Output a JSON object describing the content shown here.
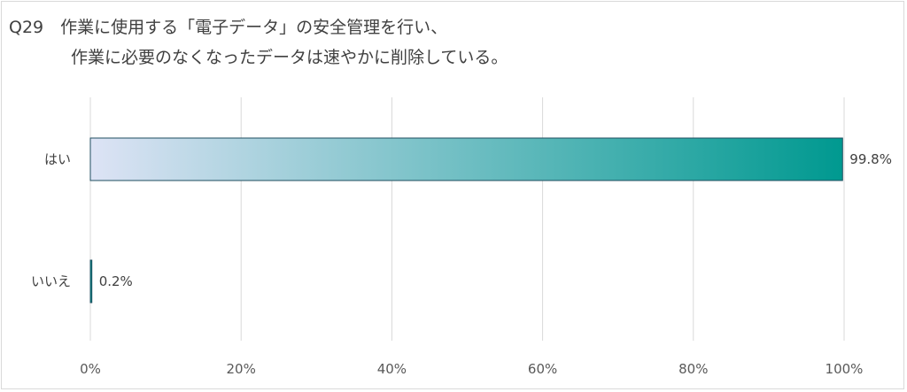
{
  "chart_data": {
    "type": "bar",
    "orientation": "horizontal",
    "title_line1": "Q29　作業に使用する「電子データ」の安全管理を行い、",
    "title_line2": "作業に必要のなくなったデータは速やかに削除している。",
    "categories": [
      "はい",
      "いいえ"
    ],
    "values": [
      99.8,
      0.2
    ],
    "value_labels": [
      "99.8%",
      "0.2%"
    ],
    "xlim": [
      0,
      100
    ],
    "xticks": [
      0,
      20,
      40,
      60,
      80,
      100
    ],
    "xtick_labels": [
      "0%",
      "20%",
      "40%",
      "60%",
      "80%",
      "100%"
    ],
    "grid": true,
    "legend": "none",
    "colors": {
      "bar_start": "#dde3f5",
      "bar_end": "#009990",
      "bar_border": "#1f4e5f",
      "grid": "#d9d9d9",
      "text": "#404040"
    }
  }
}
